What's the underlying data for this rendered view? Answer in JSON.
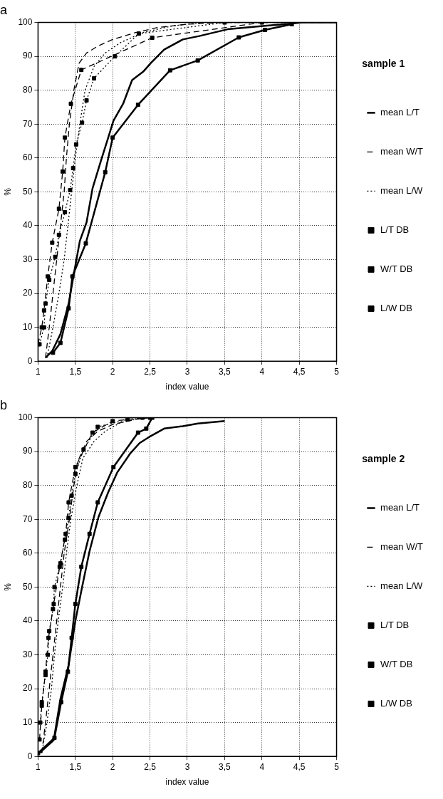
{
  "chart_data": [
    {
      "type": "line",
      "title": "a",
      "xlabel": "index value",
      "ylabel": "%",
      "legend_title": "sample 1",
      "legend": "right",
      "grid": true,
      "xlim": [
        1,
        5
      ],
      "xticks": [
        1,
        {
          "value": 1.5,
          "label": "1,5"
        },
        2,
        {
          "value": 2.5,
          "label": "2,5"
        },
        3,
        {
          "value": 3.5,
          "label": "3,5"
        },
        4,
        {
          "value": 4.5,
          "label": "4,5"
        },
        5
      ],
      "ylim": [
        0,
        100
      ],
      "yticks": [
        0,
        10,
        20,
        30,
        40,
        50,
        60,
        70,
        80,
        90,
        100
      ],
      "series": [
        {
          "name": "mean L/T",
          "color": "#000000",
          "line_style": "solid",
          "marker": "none",
          "x": [
            1.1,
            1.19,
            1.3,
            1.41,
            1.49,
            1.56,
            1.65,
            1.73,
            1.84,
            1.94,
            2.01,
            2.14,
            2.26,
            2.41,
            2.51,
            2.69,
            2.94,
            3.16,
            3.54,
            4.04,
            4.36,
            4.54,
            5
          ],
          "values": [
            1,
            3,
            8,
            17,
            27,
            35.5,
            41,
            51,
            59,
            66,
            71,
            76,
            83,
            85.5,
            88,
            92,
            95,
            96,
            98,
            99,
            99.6,
            100,
            100
          ]
        },
        {
          "name": "mean W/T",
          "color": "#000000",
          "line_style": "dashed",
          "marker": "none",
          "x": [
            1.1,
            1.15,
            1.2,
            1.25,
            1.3,
            1.35,
            1.38,
            1.42,
            1.48,
            1.55,
            1.65,
            1.8,
            2,
            2.3,
            2.6,
            3,
            3.5,
            5
          ],
          "values": [
            1,
            10,
            20,
            30,
            40,
            50,
            60,
            70,
            80,
            88,
            91,
            93,
            95,
            97,
            98.5,
            99.5,
            100,
            100
          ]
        },
        {
          "name": "mean L/W",
          "color": "#000000",
          "line_style": "dotted",
          "marker": "none",
          "x": [
            1.12,
            1.2,
            1.28,
            1.35,
            1.4,
            1.45,
            1.5,
            1.56,
            1.63,
            1.75,
            1.9,
            2.1,
            2.4,
            2.8,
            3.2,
            5
          ],
          "values": [
            1,
            10,
            20,
            30,
            40,
            50,
            60,
            70,
            80,
            87,
            91,
            94,
            97,
            99,
            100,
            100
          ]
        },
        {
          "name": "L/T DB",
          "color": "#000000",
          "line_style": "solid",
          "marker": "square",
          "x": [
            1.2,
            1.3,
            1.41,
            1.46,
            1.64,
            1.9,
            2,
            2.34,
            2.77,
            3.14,
            3.69,
            4.04,
            4.4
          ],
          "values": [
            2.5,
            5.4,
            15.6,
            25,
            34.8,
            55.8,
            66,
            75.7,
            85.9,
            88.8,
            95.6,
            97.8,
            99.5
          ]
        },
        {
          "name": "W/T DB",
          "color": "#000000",
          "line_style": "dashed",
          "marker": "square",
          "x": [
            1,
            1.05,
            1.08,
            1.13,
            1.19,
            1.28,
            1.33,
            1.36,
            1.44,
            1.58,
            2.53,
            4
          ],
          "values": [
            5,
            10,
            15,
            25,
            35,
            45,
            56,
            66,
            76,
            86,
            95.5,
            100
          ]
        },
        {
          "name": "L/W DB",
          "color": "#000000",
          "line_style": "dotted",
          "marker": "square",
          "x": [
            1.02,
            1.08,
            1.1,
            1.15,
            1.23,
            1.28,
            1.36,
            1.43,
            1.47,
            1.51,
            1.59,
            1.65,
            1.75,
            2.03,
            2.35,
            3.5
          ],
          "values": [
            5,
            10,
            17,
            24,
            30.8,
            37.3,
            44,
            50.5,
            57,
            64,
            70.4,
            77,
            83.5,
            90,
            96.7,
            100
          ]
        }
      ]
    },
    {
      "type": "line",
      "title": "b",
      "xlabel": "index value",
      "ylabel": "%",
      "legend_title": "sample 2",
      "legend": "right",
      "grid": true,
      "xlim": [
        1,
        5
      ],
      "xticks": [
        1,
        {
          "value": 1.5,
          "label": "1,5"
        },
        2,
        {
          "value": 2.5,
          "label": "2,5"
        },
        3,
        {
          "value": 3.5,
          "label": "3,5"
        },
        4,
        {
          "value": 4.5,
          "label": "4,5"
        },
        5
      ],
      "ylim": [
        0,
        100
      ],
      "yticks": [
        0,
        10,
        20,
        30,
        40,
        50,
        60,
        70,
        80,
        90,
        100
      ],
      "series": [
        {
          "name": "mean L/T",
          "color": "#000000",
          "line_style": "solid",
          "marker": "none",
          "x": [
            1.02,
            1.21,
            1.3,
            1.41,
            1.5,
            1.59,
            1.69,
            1.81,
            1.94,
            2.06,
            2.24,
            2.36,
            2.51,
            2.69,
            2.94,
            3.14,
            3.5
          ],
          "values": [
            1,
            4.8,
            17,
            27,
            40,
            50,
            60.6,
            70.7,
            78,
            83.8,
            89.6,
            92.5,
            94.6,
            96.8,
            97.5,
            98.3,
            99
          ]
        },
        {
          "name": "mean W/T",
          "color": "#000000",
          "line_style": "dashed",
          "marker": "none",
          "x": [
            1.05,
            1.1,
            1.15,
            1.2,
            1.25,
            1.3,
            1.35,
            1.42,
            1.48,
            1.55,
            1.65,
            1.8,
            2,
            2.3,
            2.5
          ],
          "values": [
            1,
            10,
            20,
            30,
            40,
            50,
            60,
            70,
            80,
            88,
            93,
            96,
            98,
            99.5,
            100
          ]
        },
        {
          "name": "mean L/W",
          "color": "#000000",
          "line_style": "dotted",
          "marker": "none",
          "x": [
            1.05,
            1.12,
            1.18,
            1.22,
            1.27,
            1.33,
            1.38,
            1.44,
            1.52,
            1.6,
            1.75,
            1.9,
            2.1,
            2.4
          ],
          "values": [
            1,
            10,
            20,
            30,
            40,
            50,
            60,
            70,
            80,
            88,
            93,
            96,
            98.5,
            100
          ]
        },
        {
          "name": "L/T DB",
          "color": "#000000",
          "line_style": "solid",
          "marker": "square",
          "x": [
            1,
            1.22,
            1.31,
            1.4,
            1.45,
            1.5,
            1.58,
            1.69,
            1.8,
            2.01,
            2.34,
            2.45,
            2.53
          ],
          "values": [
            1,
            5.5,
            16,
            25,
            35,
            45,
            56,
            65.7,
            75,
            85.4,
            95.6,
            96.8,
            100
          ]
        },
        {
          "name": "W/T DB",
          "color": "#000000",
          "line_style": "dashed",
          "marker": "square",
          "x": [
            1.02,
            1.05,
            1.1,
            1.14,
            1.21,
            1.29,
            1.37,
            1.41,
            1.5,
            1.73,
            2,
            2.4
          ],
          "values": [
            5,
            15,
            25,
            35,
            45,
            56,
            65.7,
            75,
            85.4,
            95.6,
            99,
            100
          ]
        },
        {
          "name": "L/W DB",
          "color": "#000000",
          "line_style": "dotted",
          "marker": "square",
          "x": [
            1.03,
            1.05,
            1.1,
            1.13,
            1.15,
            1.2,
            1.22,
            1.3,
            1.36,
            1.41,
            1.45,
            1.5,
            1.61,
            1.8,
            2.2,
            2.5
          ],
          "values": [
            10,
            16,
            24,
            30,
            37,
            43.5,
            50,
            57,
            64,
            70.5,
            77,
            83.4,
            90.6,
            97.3,
            99.5,
            100
          ]
        }
      ]
    }
  ]
}
